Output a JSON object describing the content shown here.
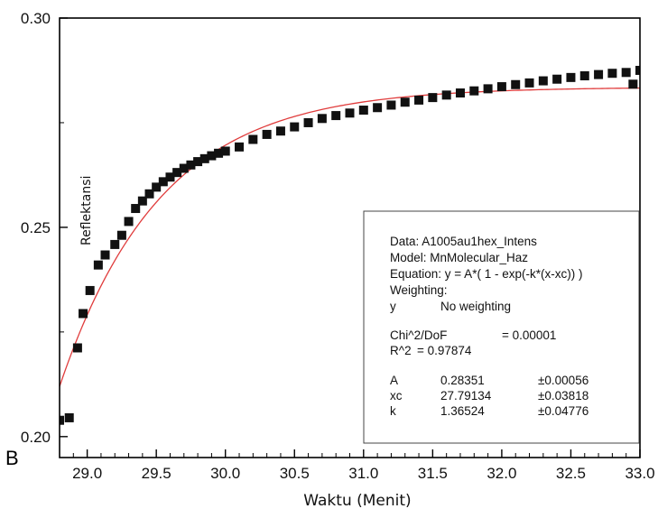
{
  "panel_label": "B",
  "chart_data": {
    "type": "scatter",
    "xlabel": "Waktu (Menit)",
    "ylabel": "Reflektansi",
    "xlim": [
      28.8,
      33.0
    ],
    "ylim": [
      0.195,
      0.3
    ],
    "x_ticks": [
      "29.0",
      "29.5",
      "30.0",
      "30.5",
      "31.0",
      "31.5",
      "32.0",
      "32.5",
      "33.0"
    ],
    "y_ticks": [
      "0.20",
      "0.25",
      "0.30"
    ],
    "grid": false,
    "colors": {
      "points": "#111111",
      "fit": "#e03c3c",
      "axes": "#000000"
    },
    "fit": {
      "A": 0.28351,
      "xc": 27.79134,
      "k": 1.36524
    },
    "series": [
      {
        "marker": "square",
        "x": [
          28.8,
          28.87,
          28.93,
          28.97,
          29.02,
          29.08,
          29.13,
          29.2,
          29.25,
          29.3,
          29.35,
          29.4,
          29.45,
          29.5,
          29.55,
          29.6,
          29.65,
          29.7,
          29.75,
          29.8,
          29.85,
          29.9,
          29.95,
          30.0,
          30.1,
          30.2,
          30.3,
          30.4,
          30.5,
          30.6,
          30.7,
          30.8,
          30.9,
          31.0,
          31.1,
          31.2,
          31.3,
          31.4,
          31.5,
          31.6,
          31.7,
          31.8,
          31.9,
          32.0,
          32.1,
          32.2,
          32.3,
          32.4,
          32.5,
          32.6,
          32.7,
          32.8,
          32.9,
          32.95,
          33.0
        ],
        "y": [
          0.2039,
          0.2045,
          0.2212,
          0.2294,
          0.2349,
          0.241,
          0.2434,
          0.2459,
          0.2481,
          0.2514,
          0.2545,
          0.2563,
          0.258,
          0.2596,
          0.2609,
          0.262,
          0.2631,
          0.2641,
          0.2649,
          0.2657,
          0.2664,
          0.2671,
          0.2677,
          0.2682,
          0.2692,
          0.271,
          0.2722,
          0.273,
          0.274,
          0.275,
          0.276,
          0.2767,
          0.2773,
          0.278,
          0.2786,
          0.2792,
          0.2799,
          0.2804,
          0.281,
          0.2816,
          0.2821,
          0.2826,
          0.2831,
          0.2836,
          0.2841,
          0.2845,
          0.285,
          0.2854,
          0.2858,
          0.2862,
          0.2865,
          0.2868,
          0.287,
          0.2842,
          0.2875
        ]
      }
    ]
  },
  "info_box": {
    "lines": [
      "Data: A1005au1hex_Intens",
      "Model: MnMolecular_Haz",
      "Equation: y = A*( 1 - exp(-k*(x-xc)) )",
      "Weighting:"
    ],
    "weighting": {
      "y": "y",
      "text": "No weighting"
    },
    "stats": [
      {
        "label": "Chi^2/DoF",
        "value": "= 0.00001"
      },
      {
        "label": "R^2",
        "value": "=  0.97874"
      }
    ],
    "params": [
      {
        "name": "A",
        "value": "0.28351",
        "error": "±0.00056"
      },
      {
        "name": "xc",
        "value": "27.79134",
        "error": "±0.03818"
      },
      {
        "name": "k",
        "value": "1.36524",
        "error": "±0.04776"
      }
    ]
  }
}
